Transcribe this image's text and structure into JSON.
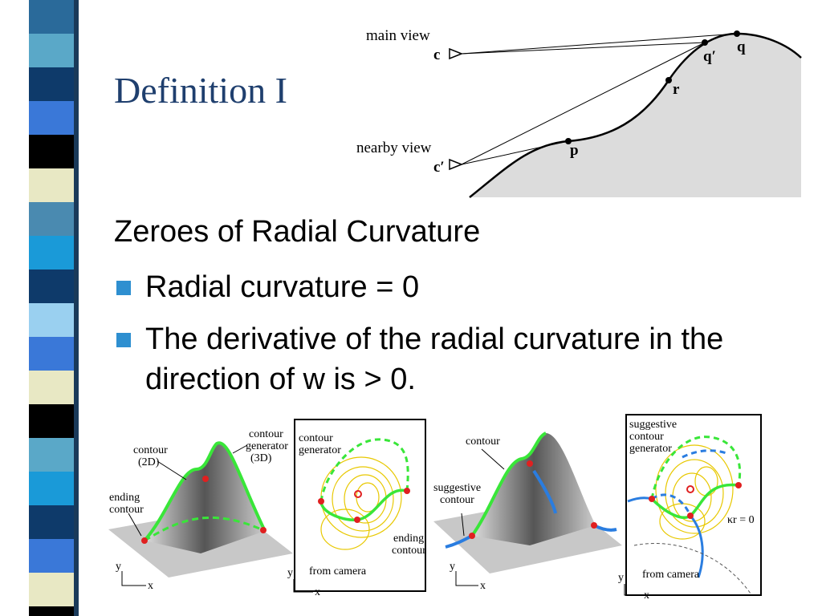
{
  "title": "Definition I",
  "top_figure": {
    "main_view": "main view",
    "c": "c",
    "q_prime": "q′",
    "q": "q",
    "r": "r",
    "nearby_view": "nearby view",
    "c_prime": "c′",
    "p": "p"
  },
  "body": {
    "heading": "Zeroes of Radial Curvature",
    "bullets": [
      "Radial curvature = 0",
      "The derivative of the radial curvature in the direction of w is > 0."
    ]
  },
  "figures": [
    {
      "labels": [
        [
          "contour",
          "(2D)"
        ],
        [
          "contour",
          "generator",
          "(3D)"
        ],
        [
          "ending",
          "contour"
        ]
      ],
      "axes": [
        "y",
        "x"
      ]
    },
    {
      "labels": [
        [
          "contour",
          "generator"
        ],
        [
          "ending",
          "contour"
        ],
        [
          "from camera"
        ]
      ],
      "axes": [
        "y",
        "x"
      ]
    },
    {
      "labels": [
        [
          "contour"
        ],
        [
          "suggestive",
          "contour"
        ]
      ],
      "axes": [
        "y",
        "x"
      ]
    },
    {
      "labels": [
        [
          "suggestive",
          "contour",
          "generator"
        ],
        [
          "from camera"
        ],
        [
          "κr = 0"
        ]
      ],
      "axes": [
        "y",
        "x"
      ]
    }
  ]
}
